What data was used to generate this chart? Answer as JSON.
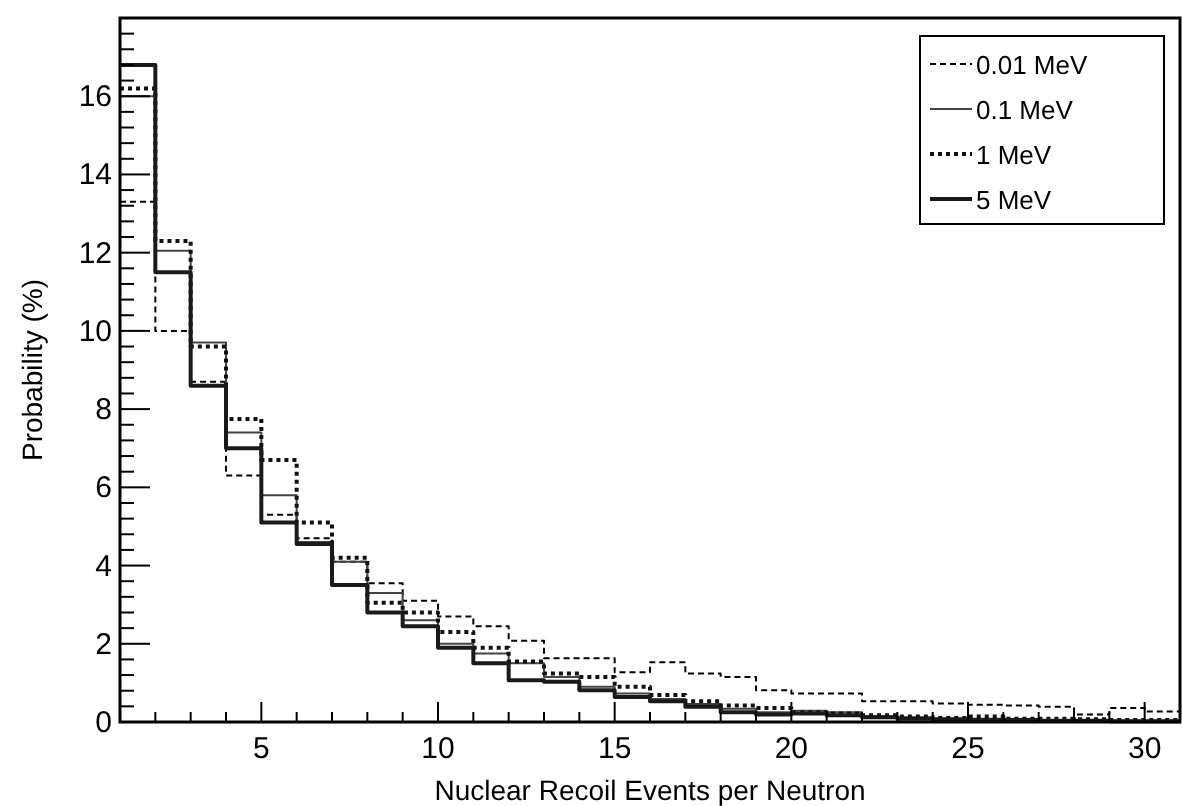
{
  "chart_data": {
    "type": "histogram",
    "xlabel": "Nuclear Recoil Events per Neutron",
    "ylabel": "Probability (%)",
    "bins": [
      1,
      2,
      3,
      4,
      5,
      6,
      7,
      8,
      9,
      10,
      11,
      12,
      13,
      14,
      15,
      16,
      17,
      18,
      19,
      20,
      21,
      22,
      23,
      24,
      25,
      26,
      27,
      28,
      29,
      30,
      31
    ],
    "series": [
      {
        "name": "0.01 MeV",
        "color": "#000000",
        "line_style": "dashed",
        "values": [
          13.3,
          10.0,
          8.7,
          6.3,
          5.3,
          4.7,
          4.1,
          3.55,
          3.1,
          2.7,
          2.45,
          2.08,
          1.63,
          1.63,
          1.27,
          1.53,
          1.24,
          1.15,
          0.81,
          0.73,
          0.73,
          0.53,
          0.53,
          0.47,
          0.44,
          0.42,
          0.39,
          0.19,
          0.36,
          0.27
        ]
      },
      {
        "name": "0.1 MeV",
        "color": "#444444",
        "line_style": "solid",
        "values": [
          16.0,
          12.05,
          9.7,
          7.4,
          5.8,
          4.6,
          4.1,
          3.3,
          2.6,
          2.0,
          1.75,
          1.5,
          1.15,
          0.9,
          0.73,
          0.59,
          0.46,
          0.34,
          0.25,
          0.29,
          0.25,
          0.15,
          0.12,
          0.08,
          0.08,
          0.07,
          0.05,
          0.05,
          0.03,
          0.03
        ]
      },
      {
        "name": "1 MeV",
        "color": "#111111",
        "line_style": "dotted",
        "values": [
          16.2,
          12.3,
          9.6,
          7.75,
          6.7,
          5.1,
          4.2,
          3.05,
          2.8,
          2.3,
          1.9,
          1.55,
          1.24,
          1.15,
          0.9,
          0.69,
          0.53,
          0.42,
          0.36,
          0.25,
          0.22,
          0.17,
          0.14,
          0.1,
          0.14,
          0.08,
          0.08,
          0.07,
          0.05,
          0.05
        ]
      },
      {
        "name": "5 MeV",
        "color": "#1a1a1a",
        "line_style": "solid",
        "values": [
          16.8,
          11.5,
          8.6,
          7.0,
          5.1,
          4.55,
          3.5,
          2.8,
          2.45,
          1.9,
          1.5,
          1.07,
          1.03,
          0.81,
          0.64,
          0.53,
          0.39,
          0.25,
          0.19,
          0.22,
          0.17,
          0.12,
          0.08,
          0.07,
          0.05,
          0.05,
          0.03,
          0.03,
          0.02,
          0.02
        ]
      }
    ],
    "xlim": [
      1,
      31
    ],
    "ylim": [
      0,
      18
    ],
    "xticks": [
      {
        "value": 2,
        "label": null
      },
      {
        "value": 3,
        "label": null
      },
      {
        "value": 4,
        "label": null
      },
      5,
      {
        "value": 6,
        "label": null
      },
      {
        "value": 7,
        "label": null
      },
      {
        "value": 8,
        "label": null
      },
      {
        "value": 9,
        "label": null
      },
      10,
      {
        "value": 11,
        "label": null
      },
      {
        "value": 12,
        "label": null
      },
      {
        "value": 13,
        "label": null
      },
      {
        "value": 14,
        "label": null
      },
      15,
      {
        "value": 16,
        "label": null
      },
      {
        "value": 17,
        "label": null
      },
      {
        "value": 18,
        "label": null
      },
      {
        "value": 19,
        "label": null
      },
      20,
      {
        "value": 21,
        "label": null
      },
      {
        "value": 22,
        "label": null
      },
      {
        "value": 23,
        "label": null
      },
      {
        "value": 24,
        "label": null
      },
      25,
      {
        "value": 26,
        "label": null
      },
      {
        "value": 27,
        "label": null
      },
      {
        "value": 28,
        "label": null
      },
      {
        "value": 29,
        "label": null
      },
      30
    ],
    "yticks": [
      0,
      {
        "value": 0.4,
        "label": null
      },
      {
        "value": 0.8,
        "label": null
      },
      {
        "value": 1.2,
        "label": null
      },
      {
        "value": 1.6,
        "label": null
      },
      2,
      {
        "value": 2.4,
        "label": null
      },
      {
        "value": 2.8,
        "label": null
      },
      {
        "value": 3.2,
        "label": null
      },
      {
        "value": 3.6,
        "label": null
      },
      4,
      {
        "value": 4.4,
        "label": null
      },
      {
        "value": 4.8,
        "label": null
      },
      {
        "value": 5.2,
        "label": null
      },
      {
        "value": 5.6,
        "label": null
      },
      6,
      {
        "value": 6.4,
        "label": null
      },
      {
        "value": 6.8,
        "label": null
      },
      {
        "value": 7.2,
        "label": null
      },
      {
        "value": 7.6,
        "label": null
      },
      8,
      {
        "value": 8.4,
        "label": null
      },
      {
        "value": 8.8,
        "label": null
      },
      {
        "value": 9.2,
        "label": null
      },
      {
        "value": 9.6,
        "label": null
      },
      10,
      {
        "value": 10.4,
        "label": null
      },
      {
        "value": 10.8,
        "label": null
      },
      {
        "value": 11.2,
        "label": null
      },
      {
        "value": 11.6,
        "label": null
      },
      12,
      {
        "value": 12.4,
        "label": null
      },
      {
        "value": 12.8,
        "label": null
      },
      {
        "value": 13.2,
        "label": null
      },
      {
        "value": 13.6,
        "label": null
      },
      14,
      {
        "value": 14.4,
        "label": null
      },
      {
        "value": 14.8,
        "label": null
      },
      {
        "value": 15.2,
        "label": null
      },
      {
        "value": 15.6,
        "label": null
      },
      16,
      {
        "value": 16.4,
        "label": null
      },
      {
        "value": 16.8,
        "label": null
      },
      {
        "value": 17.2,
        "label": null
      },
      {
        "value": 17.6,
        "label": null
      }
    ],
    "legend": "top right"
  }
}
